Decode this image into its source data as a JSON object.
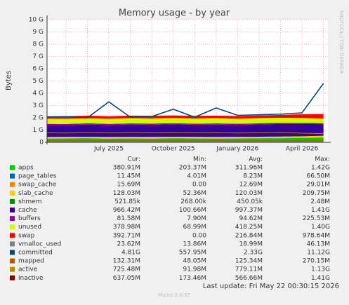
{
  "chart_data": {
    "type": "area",
    "title": "Memory usage - by year",
    "y_label": "Bytes",
    "side_text": "RRDTOOL / TOBI OETIKER",
    "categories": [
      null,
      null,
      null,
      "July 2025",
      null,
      null,
      "October 2025",
      null,
      null,
      "January 2026",
      null,
      null,
      "April 2026",
      null
    ],
    "ylim": [
      0,
      10
    ],
    "yticks": [
      0,
      {
        "value": 1,
        "label": "1 G"
      },
      {
        "value": 2,
        "label": "2 G"
      },
      {
        "value": 3,
        "label": "3 G"
      },
      {
        "value": 4,
        "label": "4 G"
      },
      {
        "value": 5,
        "label": "5 G"
      },
      {
        "value": 6,
        "label": "6 G"
      },
      {
        "value": 7,
        "label": "7 G"
      },
      {
        "value": 8,
        "label": "8 G"
      },
      {
        "value": 9,
        "label": "9 G"
      },
      {
        "value": 10,
        "label": "10 G"
      }
    ],
    "grid": true,
    "background": "#f0f0f0",
    "plot_background": "#ffffff",
    "grid_color": "#e8a0a0",
    "columns": [
      "Cur:",
      "Min:",
      "Avg:",
      "Max:"
    ],
    "series": [
      {
        "name": "apps",
        "color": "#00cc00",
        "style": "area",
        "values": [
          0.3,
          0.31,
          0.32,
          0.3,
          0.31,
          0.3,
          0.32,
          0.31,
          0.3,
          0.31,
          0.32,
          0.33,
          0.35,
          0.38
        ],
        "stats": [
          "380.91M",
          "203.37M",
          "311.96M",
          "1.42G"
        ]
      },
      {
        "name": "page_tables",
        "color": "#0066b3",
        "style": "area",
        "values": [
          0.008,
          0.008,
          0.008,
          0.008,
          0.008,
          0.008,
          0.008,
          0.008,
          0.008,
          0.008,
          0.008,
          0.009,
          0.01,
          0.011
        ],
        "stats": [
          "11.45M",
          "4.01M",
          "8.23M",
          "66.50M"
        ]
      },
      {
        "name": "swap_cache",
        "color": "#ff8000",
        "style": "area",
        "values": [
          0.012,
          0.013,
          0.012,
          0.014,
          0.012,
          0.013,
          0.012,
          0.011,
          0.012,
          0.013,
          0.012,
          0.013,
          0.014,
          0.015
        ],
        "stats": [
          "15.69M",
          "0.00",
          "12.69M",
          "29.01M"
        ]
      },
      {
        "name": "slab_cache",
        "color": "#ffcc00",
        "style": "area",
        "values": [
          0.12,
          0.12,
          0.11,
          0.12,
          0.12,
          0.12,
          0.12,
          0.12,
          0.12,
          0.12,
          0.12,
          0.12,
          0.12,
          0.13
        ],
        "stats": [
          "128.03M",
          "52.36M",
          "120.03M",
          "209.75M"
        ]
      },
      {
        "name": "shmem",
        "color": "#008f00",
        "style": "area",
        "values": [
          0.0004,
          0.0004,
          0.0005,
          0.0004,
          0.0004,
          0.0005,
          0.0004,
          0.0004,
          0.0004,
          0.0005,
          0.0004,
          0.0004,
          0.0005,
          0.0005
        ],
        "stats": [
          "521.85k",
          "268.00k",
          "450.05k",
          "2.48M"
        ]
      },
      {
        "name": "cache",
        "color": "#330099",
        "style": "area",
        "values": [
          0.98,
          0.95,
          1.0,
          0.97,
          1.0,
          0.99,
          1.01,
          0.98,
          1.0,
          0.97,
          1.0,
          1.02,
          1.0,
          0.94
        ],
        "stats": [
          "966.42M",
          "100.66M",
          "997.37M",
          "1.41G"
        ]
      },
      {
        "name": "buffers",
        "color": "#990099",
        "style": "area",
        "values": [
          0.09,
          0.09,
          0.1,
          0.09,
          0.09,
          0.1,
          0.09,
          0.09,
          0.1,
          0.09,
          0.09,
          0.1,
          0.09,
          0.08
        ],
        "stats": [
          "81.58M",
          "7.90M",
          "94.62M",
          "225.53M"
        ]
      },
      {
        "name": "unused",
        "color": "#ccff00",
        "style": "area",
        "values": [
          0.42,
          0.43,
          0.41,
          0.42,
          0.43,
          0.41,
          0.42,
          0.42,
          0.43,
          0.41,
          0.42,
          0.41,
          0.4,
          0.37
        ],
        "stats": [
          "378.98M",
          "68.99M",
          "418.25M",
          "1.40G"
        ]
      },
      {
        "name": "swap",
        "color": "#ff0000",
        "style": "area",
        "values": [
          0.2,
          0.21,
          0.22,
          0.2,
          0.21,
          0.22,
          0.21,
          0.22,
          0.21,
          0.22,
          0.22,
          0.23,
          0.3,
          0.38
        ],
        "stats": [
          "392.71M",
          "0.00",
          "216.84M",
          "978.64M"
        ]
      },
      {
        "name": "vmalloc_used",
        "color": "#808080",
        "style": "line",
        "values": [
          0.019,
          0.019,
          0.019,
          0.019,
          0.019,
          0.019,
          0.019,
          0.019,
          0.019,
          0.019,
          0.019,
          0.019,
          0.02,
          0.023
        ],
        "stats": [
          "23.62M",
          "13.86M",
          "18.99M",
          "46.13M"
        ]
      },
      {
        "name": "committed",
        "color": "#00487d",
        "style": "line",
        "values": [
          2.05,
          2.1,
          2.0,
          3.3,
          2.05,
          2.1,
          2.7,
          2.05,
          2.8,
          2.2,
          2.25,
          2.3,
          2.4,
          4.8
        ],
        "stats": [
          "4.81G",
          "557.95M",
          "2.33G",
          "11.12G"
        ]
      },
      {
        "name": "mapped",
        "color": "#b35a00",
        "style": "line",
        "values": [
          0.13,
          0.12,
          0.13,
          0.12,
          0.13,
          0.12,
          0.13,
          0.12,
          0.13,
          0.12,
          0.13,
          0.12,
          0.13,
          0.13
        ],
        "stats": [
          "132.31M",
          "48.05M",
          "125.34M",
          "270.15M"
        ]
      },
      {
        "name": "active",
        "color": "#b38f00",
        "style": "line",
        "values": [
          0.78,
          0.76,
          0.8,
          0.77,
          0.79,
          0.78,
          0.8,
          0.77,
          0.79,
          0.76,
          0.78,
          0.8,
          0.75,
          0.71
        ],
        "stats": [
          "725.48M",
          "91.98M",
          "779.11M",
          "1.13G"
        ]
      },
      {
        "name": "inactive",
        "color": "#8b0000",
        "style": "line",
        "values": [
          0.57,
          0.58,
          0.56,
          0.57,
          0.58,
          0.56,
          0.57,
          0.58,
          0.56,
          0.57,
          0.58,
          0.57,
          0.6,
          0.62
        ],
        "stats": [
          "637.05M",
          "173.46M",
          "566.66M",
          "1.41G"
        ]
      }
    ],
    "last_update": "Last update: Fri May 22 00:30:15 2026",
    "footer": "Munin 2.0.57"
  }
}
